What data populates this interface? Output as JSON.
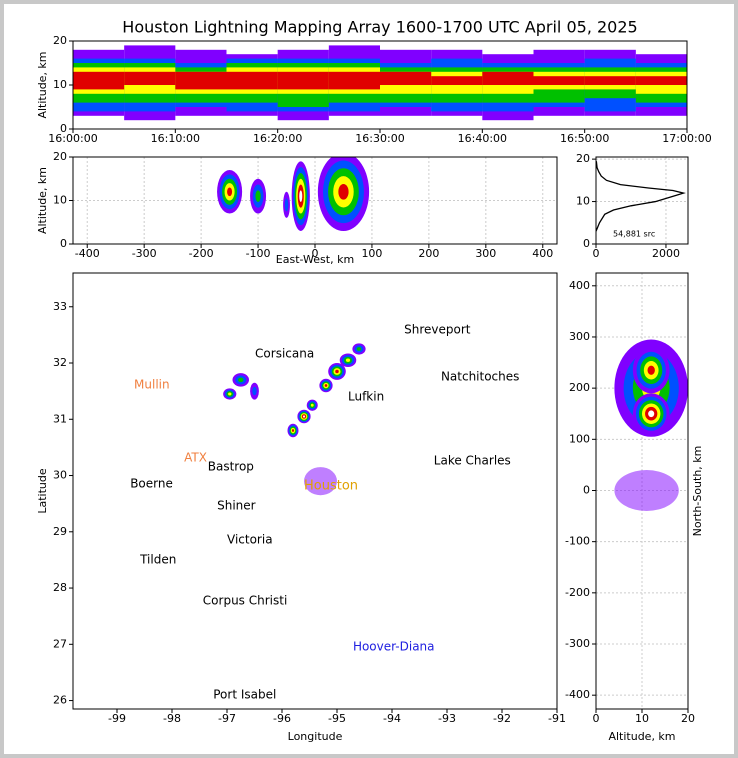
{
  "title": "Houston Lightning Mapping Array 1600-1700 UTC April 05, 2025",
  "chart_data": [
    {
      "type": "range",
      "ylabel": "Altitude, km",
      "xlim": [
        "16:00:00",
        "17:00:00"
      ],
      "ylim": [
        0,
        20
      ],
      "xticks": [
        "16:00:00",
        "16:10:00",
        "16:20:00",
        "16:30:00",
        "16:40:00",
        "16:50:00",
        "17:00:00"
      ],
      "yticks": [
        0,
        10,
        20
      ],
      "bins": [
        "16:00:00",
        "16:05:00",
        "16:10:00",
        "16:15:00",
        "16:20:00",
        "16:25:00",
        "16:30:00",
        "16:35:00",
        "16:40:00",
        "16:45:00",
        "16:50:00",
        "16:55:00",
        "17:00:00"
      ],
      "series": [
        {
          "color": "#8000ff",
          "low": [
            3,
            2,
            3,
            3,
            2,
            3,
            3,
            3,
            2,
            3,
            3,
            3
          ],
          "high": [
            18,
            19,
            18,
            17,
            18,
            19,
            18,
            18,
            17,
            18,
            18,
            17
          ]
        },
        {
          "color": "#0050ff",
          "low": [
            4,
            4,
            5,
            4,
            4,
            4,
            5,
            4,
            4,
            5,
            4,
            5
          ],
          "high": [
            16,
            16,
            15,
            16,
            16,
            16,
            15,
            16,
            15,
            15,
            16,
            15
          ]
        },
        {
          "color": "#00c000",
          "low": [
            6,
            6,
            6,
            6,
            5,
            6,
            6,
            6,
            6,
            6,
            7,
            6
          ],
          "high": [
            15,
            15,
            14,
            15,
            15,
            15,
            14,
            14,
            14,
            14,
            14,
            14
          ]
        },
        {
          "color": "#ffff00",
          "low": [
            8,
            8,
            8,
            8,
            8,
            8,
            8,
            8,
            8,
            9,
            9,
            8
          ],
          "high": [
            14,
            14,
            13,
            14,
            14,
            14,
            13,
            13,
            13,
            13,
            13,
            13
          ]
        },
        {
          "color": "#e00000",
          "low": [
            9,
            10,
            9,
            9,
            9,
            9,
            10,
            10,
            10,
            10,
            10,
            10
          ],
          "high": [
            13,
            13,
            13,
            13,
            13,
            13,
            13,
            12,
            13,
            12,
            12,
            12
          ]
        }
      ]
    },
    {
      "type": "density",
      "xlabel": "East-West, km",
      "ylabel": "Altitude, km",
      "xlim": [
        -425,
        425
      ],
      "ylim": [
        0,
        20
      ],
      "grid": true,
      "xticks": [
        -400,
        -300,
        -200,
        -100,
        0,
        100,
        200,
        300,
        400
      ],
      "yticks": [
        0,
        10,
        20
      ],
      "level_colors": [
        "#8000ff",
        "#0050ff",
        "#00c000",
        "#ffff00",
        "#e00000",
        "#ffffff"
      ],
      "blobs": [
        {
          "x": -150,
          "y": 12,
          "xr": 22,
          "yr": 5,
          "level": 5
        },
        {
          "x": -100,
          "y": 11,
          "xr": 14,
          "yr": 4,
          "level": 3
        },
        {
          "x": -50,
          "y": 9,
          "xr": 6,
          "yr": 3,
          "level": 2
        },
        {
          "x": -25,
          "y": 11,
          "xr": 16,
          "yr": 8,
          "level": 6
        },
        {
          "x": 50,
          "y": 12,
          "xr": 45,
          "yr": 9,
          "level": 5
        }
      ]
    },
    {
      "type": "profile",
      "annotation": "54,881 src",
      "xlim": [
        0,
        2630
      ],
      "ylim": [
        0,
        20.5
      ],
      "grid": true,
      "xticks": [
        0,
        2000
      ],
      "yticks": [
        0,
        10,
        20
      ],
      "x": [
        0,
        100,
        250,
        500,
        1000,
        1700,
        2300,
        2500,
        2200,
        1500,
        700,
        300,
        150,
        80,
        30,
        10
      ],
      "values": [
        3,
        5,
        7,
        8,
        9,
        10,
        11.5,
        12,
        12.6,
        13.2,
        14,
        15,
        16,
        17,
        18,
        19.5
      ]
    },
    {
      "type": "map",
      "xlabel": "Longitude",
      "ylabel": "Latitude",
      "xlim": [
        -99.8,
        -91
      ],
      "ylim": [
        25.85,
        33.6
      ],
      "xticks": [
        -99,
        -98,
        -97,
        -96,
        -95,
        -94,
        -93,
        -92,
        -91
      ],
      "yticks": [
        26,
        27,
        28,
        29,
        30,
        31,
        32,
        33
      ],
      "level_colors": [
        "#8000ff",
        "#0050ff",
        "#00c000",
        "#ffff00",
        "#e00000",
        "#ffffff"
      ],
      "blobs": [
        {
          "x": -96.95,
          "y": 31.45,
          "xr": 0.12,
          "yr": 0.1,
          "level": 4
        },
        {
          "x": -96.75,
          "y": 31.7,
          "xr": 0.15,
          "yr": 0.12,
          "level": 3
        },
        {
          "x": -96.5,
          "y": 31.5,
          "xr": 0.08,
          "yr": 0.15,
          "level": 2
        },
        {
          "x": -95.8,
          "y": 30.8,
          "xr": 0.1,
          "yr": 0.12,
          "level": 5
        },
        {
          "x": -95.6,
          "y": 31.05,
          "xr": 0.12,
          "yr": 0.12,
          "level": 6
        },
        {
          "x": -95.45,
          "y": 31.25,
          "xr": 0.1,
          "yr": 0.1,
          "level": 4
        },
        {
          "x": -95.2,
          "y": 31.6,
          "xr": 0.12,
          "yr": 0.12,
          "level": 5
        },
        {
          "x": -95.0,
          "y": 31.85,
          "xr": 0.16,
          "yr": 0.15,
          "level": 5
        },
        {
          "x": -94.8,
          "y": 32.05,
          "xr": 0.15,
          "yr": 0.12,
          "level": 4
        },
        {
          "x": -94.6,
          "y": 32.25,
          "xr": 0.12,
          "yr": 0.1,
          "level": 3
        },
        {
          "x": -95.3,
          "y": 29.9,
          "xr": 0.3,
          "yr": 0.25,
          "level": 1
        }
      ],
      "labels": [
        {
          "text": "Shreveport",
          "lon": -93.78,
          "lat": 32.59,
          "color": "#000000"
        },
        {
          "text": "Corsicana",
          "lon": -96.49,
          "lat": 32.16,
          "color": "#000000"
        },
        {
          "text": "Mullin",
          "lon": -98.69,
          "lat": 31.61,
          "color": "#f08040"
        },
        {
          "text": "Natchitoches",
          "lon": -93.11,
          "lat": 31.75,
          "color": "#000000"
        },
        {
          "text": "Lufkin",
          "lon": -94.8,
          "lat": 31.4,
          "color": "#000000"
        },
        {
          "text": "Bastrop",
          "lon": -97.35,
          "lat": 30.15,
          "color": "#000000"
        },
        {
          "text": "ATX",
          "lon": -97.78,
          "lat": 30.31,
          "color": "#f08040"
        },
        {
          "text": "Lake Charles",
          "lon": -93.24,
          "lat": 30.26,
          "color": "#000000"
        },
        {
          "text": "Boerne",
          "lon": -98.76,
          "lat": 29.85,
          "color": "#000000"
        },
        {
          "text": "Houston",
          "lon": -95.6,
          "lat": 29.81,
          "color": "#e0a000"
        },
        {
          "text": "Shiner",
          "lon": -97.18,
          "lat": 29.46,
          "color": "#000000"
        },
        {
          "text": "Victoria",
          "lon": -97.0,
          "lat": 28.85,
          "color": "#000000"
        },
        {
          "text": "Tilden",
          "lon": -98.58,
          "lat": 28.5,
          "color": "#000000"
        },
        {
          "text": "Corpus Christi",
          "lon": -97.44,
          "lat": 27.77,
          "color": "#000000"
        },
        {
          "text": "Hoover-Diana",
          "lon": -94.71,
          "lat": 26.95,
          "color": "#2020e0"
        },
        {
          "text": "Port Isabel",
          "lon": -97.25,
          "lat": 26.1,
          "color": "#000000"
        }
      ]
    },
    {
      "type": "density",
      "xlabel": "Altitude, km",
      "ylabel": "North-South, km",
      "xlim": [
        0,
        20
      ],
      "ylim": [
        -427,
        425
      ],
      "grid": true,
      "xticks": [
        0,
        10,
        20
      ],
      "yticks": [
        -400,
        -300,
        -200,
        -100,
        0,
        100,
        200,
        300,
        400
      ],
      "level_colors": [
        "#8000ff",
        "#0050ff",
        "#00c000",
        "#ffff00",
        "#e00000",
        "#ffffff"
      ],
      "blobs": [
        {
          "x": 12,
          "y": 200,
          "xr": 8,
          "yr": 95,
          "level": 4
        },
        {
          "x": 12,
          "y": 235,
          "xr": 4,
          "yr": 45,
          "level": 5
        },
        {
          "x": 12,
          "y": 150,
          "xr": 4,
          "yr": 40,
          "level": 6
        },
        {
          "x": 11,
          "y": 0,
          "xr": 7,
          "yr": 40,
          "level": 1
        }
      ]
    }
  ]
}
